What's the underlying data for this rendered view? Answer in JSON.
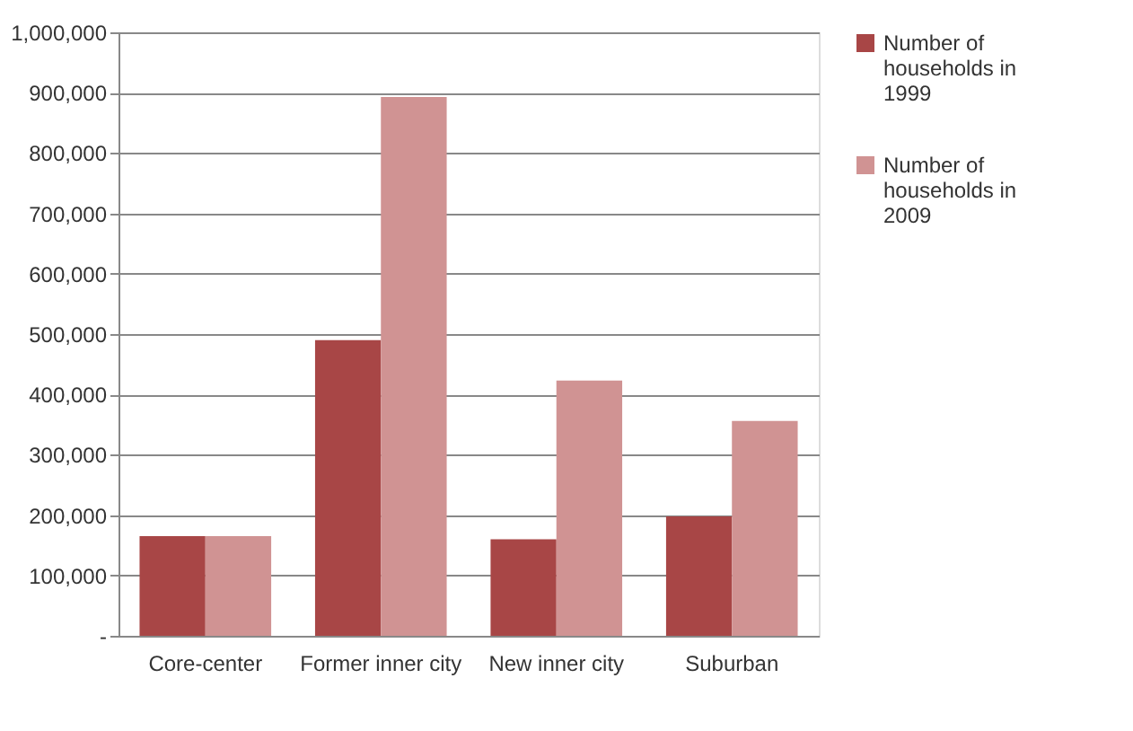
{
  "chart_data": {
    "type": "bar",
    "categories": [
      "Core-center",
      "Former inner city",
      "New inner city",
      "Suburban"
    ],
    "series": [
      {
        "name": "Number of households in 1999",
        "color": "#a84646",
        "values": [
          165000,
          490000,
          160000,
          198000
        ]
      },
      {
        "name": "Number of households in 2009",
        "color": "#d09393",
        "values": [
          165000,
          893000,
          423000,
          356000
        ]
      }
    ],
    "ylim": [
      0,
      1000000
    ],
    "yticks": [
      {
        "value": 0,
        "label": "-"
      },
      {
        "value": 100000,
        "label": "100,000"
      },
      {
        "value": 200000,
        "label": "200,000"
      },
      {
        "value": 300000,
        "label": "300,000"
      },
      {
        "value": 400000,
        "label": "400,000"
      },
      {
        "value": 500000,
        "label": "500,000"
      },
      {
        "value": 600000,
        "label": "600,000"
      },
      {
        "value": 700000,
        "label": "700,000"
      },
      {
        "value": 800000,
        "label": "800,000"
      },
      {
        "value": 900000,
        "label": "900,000"
      },
      {
        "value": 1000000,
        "label": "1,000,000"
      }
    ],
    "grid": "y",
    "legend": "right"
  }
}
